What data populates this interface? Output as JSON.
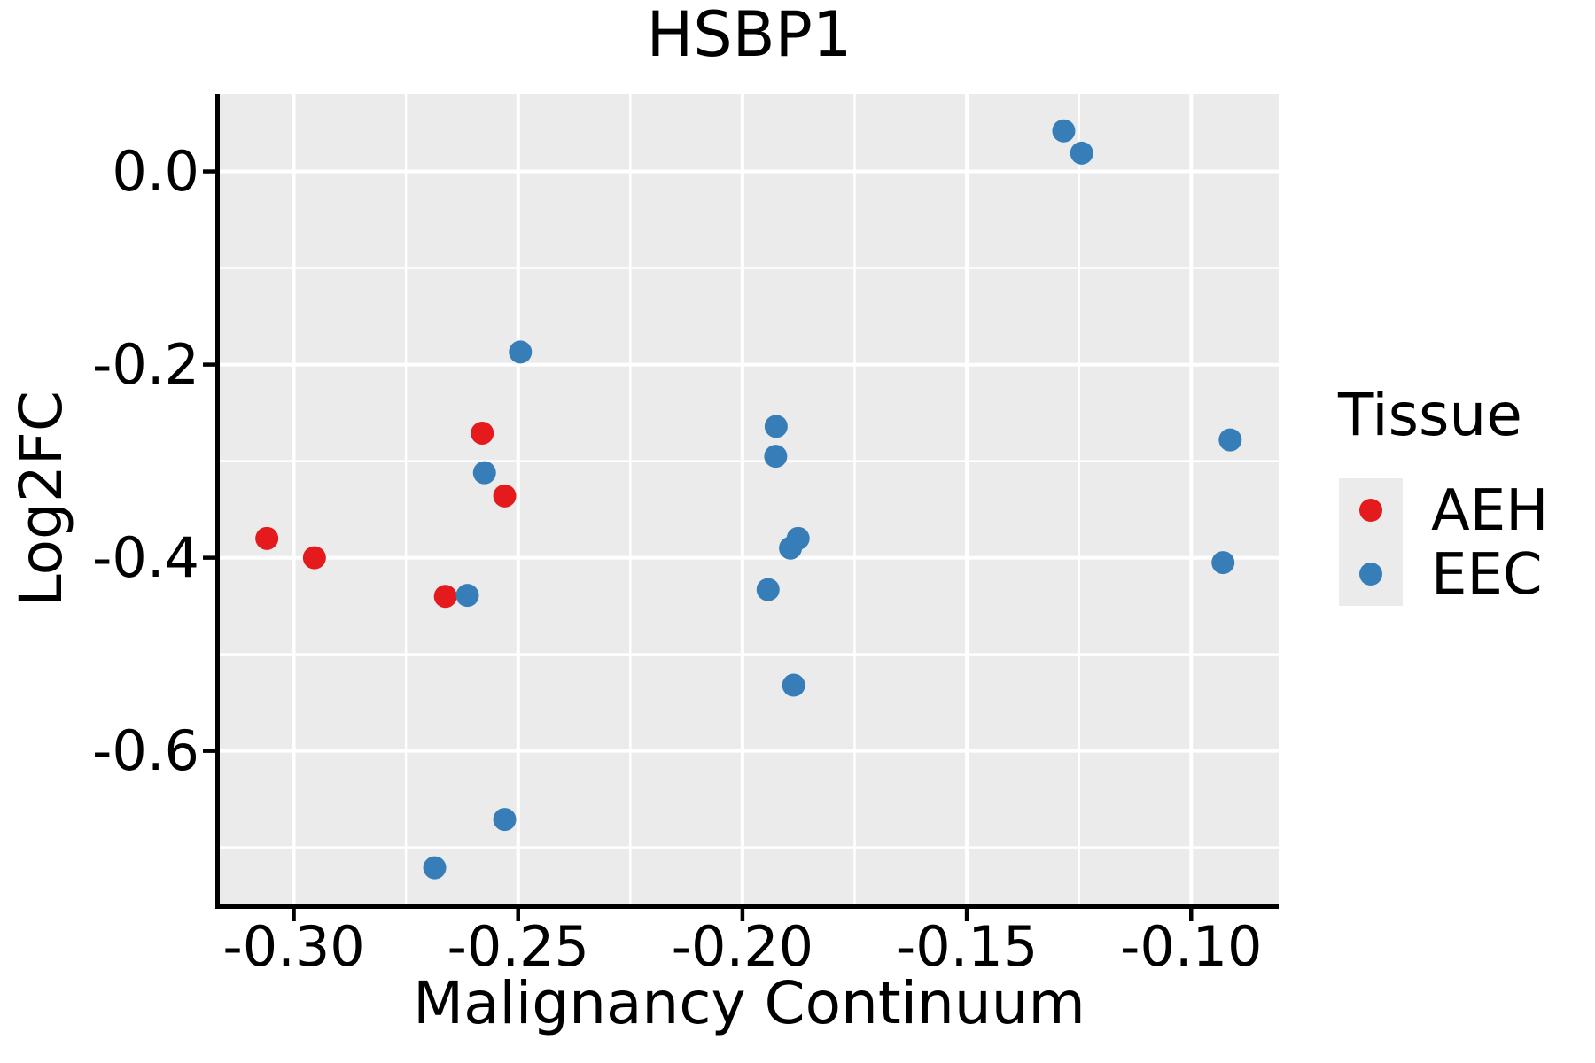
{
  "title": "HSBP1",
  "axes": {
    "x": {
      "label": "Malignancy Continuum",
      "ticks": [
        -0.3,
        -0.25,
        -0.2,
        -0.15,
        -0.1
      ],
      "tick_labels": [
        "-0.30",
        "-0.25",
        "-0.20",
        "-0.15",
        "-0.10"
      ],
      "minor_ticks": [
        -0.275,
        -0.225,
        -0.175,
        -0.125
      ]
    },
    "y": {
      "label": "Log2FC",
      "ticks": [
        0.0,
        -0.2,
        -0.4,
        -0.6
      ],
      "tick_labels": [
        "0.0",
        "-0.2",
        "-0.4",
        "-0.6"
      ],
      "minor_ticks": [
        -0.1,
        -0.3,
        -0.5,
        -0.7
      ]
    }
  },
  "legend": {
    "title": "Tissue",
    "entries": [
      {
        "label": "AEH",
        "color": "#e41a1c"
      },
      {
        "label": "EEC",
        "color": "#377eb8"
      }
    ]
  },
  "colors": {
    "panel_bg": "#ebebeb",
    "grid": "#ffffff",
    "axis": "#000000",
    "text": "#000000",
    "aeh": "#e41a1c",
    "eec": "#377eb8"
  },
  "chart_data": {
    "type": "scatter",
    "title": "HSBP1",
    "xlabel": "Malignancy Continuum",
    "ylabel": "Log2FC",
    "xlim": [
      -0.3165,
      -0.0805
    ],
    "ylim": [
      -0.759,
      0.0803
    ],
    "grid": true,
    "legend_title": "Tissue",
    "legend_position": "right",
    "series": [
      {
        "name": "AEH",
        "color": "#e41a1c",
        "points": [
          [
            -0.306,
            -0.38
          ],
          [
            -0.2954,
            -0.4
          ],
          [
            -0.258,
            -0.271
          ],
          [
            -0.253,
            -0.336
          ],
          [
            -0.2662,
            -0.44
          ]
        ]
      },
      {
        "name": "EEC",
        "color": "#377eb8",
        "points": [
          [
            -0.2495,
            -0.187
          ],
          [
            -0.2575,
            -0.312
          ],
          [
            -0.2613,
            -0.439
          ],
          [
            -0.253,
            -0.671
          ],
          [
            -0.2686,
            -0.721
          ],
          [
            -0.1925,
            -0.264
          ],
          [
            -0.1926,
            -0.295
          ],
          [
            -0.1876,
            -0.38
          ],
          [
            -0.1893,
            -0.39
          ],
          [
            -0.1943,
            -0.433
          ],
          [
            -0.1886,
            -0.532
          ],
          [
            -0.1284,
            0.042
          ],
          [
            -0.1244,
            0.019
          ],
          [
            -0.0913,
            -0.278
          ],
          [
            -0.0929,
            -0.405
          ]
        ]
      }
    ]
  }
}
